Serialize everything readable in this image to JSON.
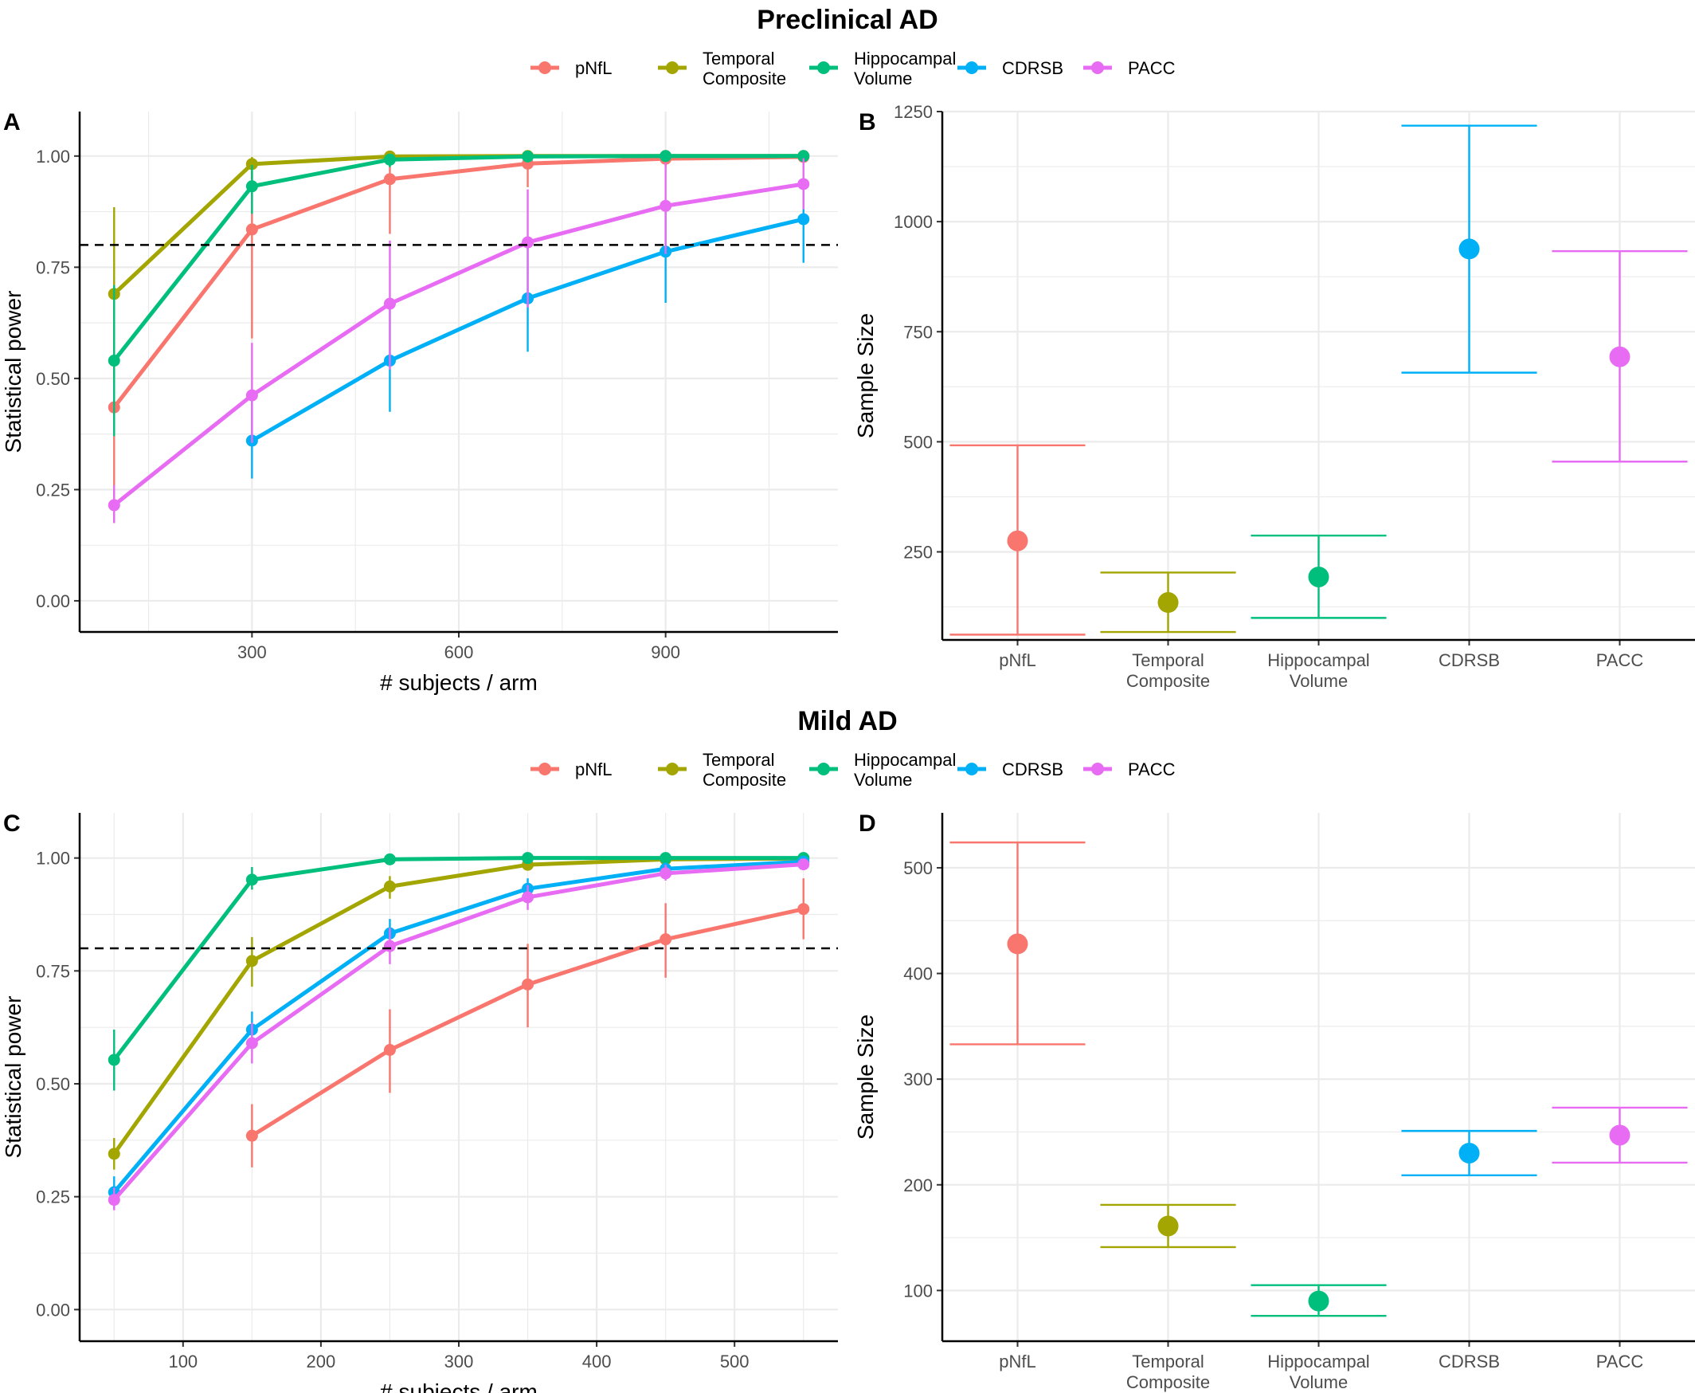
{
  "colors": {
    "pNfL": "#F8766D",
    "Temporal Composite": "#A3A500",
    "Hippocampal Volume": "#00BF7D",
    "CDRSB": "#00B0F6",
    "PACC": "#E76BF3",
    "grid": "#ebebeb",
    "threshold": "#000000"
  },
  "sections": [
    {
      "title": "Preclinical AD",
      "legend": [
        {
          "key": "pNfL",
          "lines": [
            "pNfL"
          ]
        },
        {
          "key": "Temporal Composite",
          "lines": [
            "Temporal",
            "Composite"
          ]
        },
        {
          "key": "Hippocampal Volume",
          "lines": [
            "Hippocampal",
            "Volume"
          ]
        },
        {
          "key": "CDRSB",
          "lines": [
            "CDRSB"
          ]
        },
        {
          "key": "PACC",
          "lines": [
            "PACC"
          ]
        }
      ]
    },
    {
      "title": "Mild AD",
      "legend": [
        {
          "key": "pNfL",
          "lines": [
            "pNfL"
          ]
        },
        {
          "key": "Temporal Composite",
          "lines": [
            "Temporal",
            "Composite"
          ]
        },
        {
          "key": "Hippocampal Volume",
          "lines": [
            "Hippocampal",
            "Volume"
          ]
        },
        {
          "key": "CDRSB",
          "lines": [
            "CDRSB"
          ]
        },
        {
          "key": "PACC",
          "lines": [
            "PACC"
          ]
        }
      ]
    }
  ],
  "chart_data": [
    {
      "panel": "A",
      "type": "line",
      "xlabel": "# subjects / arm",
      "ylabel": "Statistical power",
      "xlim": [
        50,
        1150
      ],
      "ylim": [
        -0.07,
        1.1
      ],
      "xticks": [
        300,
        600,
        900
      ],
      "yticks": [
        0,
        0.25,
        0.5,
        0.75,
        1.0
      ],
      "ytick_labels": [
        "0.00",
        "0.25",
        "0.50",
        "0.75",
        "1.00"
      ],
      "hline": 0.8,
      "grid": true,
      "series": [
        {
          "name": "pNfL",
          "x": [
            100,
            300,
            500,
            700,
            900,
            1100
          ],
          "y": [
            0.435,
            0.835,
            0.948,
            0.983,
            0.994,
            0.998
          ],
          "lo": [
            0.175,
            0.59,
            0.825,
            0.93,
            0.975,
            0.99
          ],
          "hi": [
            0.71,
            0.965,
            0.99,
            1.0,
            1.0,
            1.0
          ]
        },
        {
          "name": "Temporal Composite",
          "x": [
            100,
            300,
            500,
            700,
            900,
            1100
          ],
          "y": [
            0.69,
            0.982,
            0.999,
            1.0,
            1.0,
            1.0
          ],
          "lo": [
            0.49,
            0.95,
            0.99,
            1.0,
            1.0,
            1.0
          ],
          "hi": [
            0.885,
            0.998,
            1.0,
            1.0,
            1.0,
            1.0
          ]
        },
        {
          "name": "Hippocampal Volume",
          "x": [
            100,
            300,
            500,
            700,
            900,
            1100
          ],
          "y": [
            0.54,
            0.932,
            0.992,
            0.999,
            1.0,
            1.0
          ],
          "lo": [
            0.37,
            0.87,
            0.975,
            0.995,
            1.0,
            1.0
          ],
          "hi": [
            0.71,
            0.98,
            1.0,
            1.0,
            1.0,
            1.0
          ]
        },
        {
          "name": "CDRSB",
          "x": [
            300,
            500,
            700,
            900,
            1100
          ],
          "y": [
            0.36,
            0.54,
            0.68,
            0.785,
            0.858
          ],
          "lo": [
            0.275,
            0.425,
            0.56,
            0.67,
            0.76
          ],
          "hi": [
            0.45,
            0.66,
            0.8,
            0.885,
            0.93
          ]
        },
        {
          "name": "PACC",
          "x": [
            100,
            300,
            500,
            700,
            900,
            1100
          ],
          "y": [
            0.215,
            0.462,
            0.668,
            0.806,
            0.888,
            0.937
          ],
          "lo": [
            0.175,
            0.355,
            0.52,
            0.66,
            0.78,
            0.88
          ],
          "hi": [
            0.26,
            0.58,
            0.81,
            0.925,
            0.985,
            0.995
          ]
        }
      ]
    },
    {
      "panel": "B",
      "type": "scatter",
      "ylabel": "Sample Size",
      "categories": [
        [
          "pNfL"
        ],
        [
          "Temporal",
          "Composite"
        ],
        [
          "Hippocampal",
          "Volume"
        ],
        [
          "CDRSB"
        ],
        [
          "PACC"
        ]
      ],
      "ylim": [
        50,
        1250
      ],
      "yticks": [
        250,
        500,
        750,
        1000,
        1250
      ],
      "grid": true,
      "series": [
        {
          "name": "pNfL",
          "value": 275,
          "lo": 62,
          "hi": 492
        },
        {
          "name": "Temporal Composite",
          "value": 135,
          "lo": 68,
          "hi": 203
        },
        {
          "name": "Hippocampal Volume",
          "value": 193,
          "lo": 100,
          "hi": 287
        },
        {
          "name": "CDRSB",
          "value": 938,
          "lo": 657,
          "hi": 1218
        },
        {
          "name": "PACC",
          "value": 693,
          "lo": 455,
          "hi": 933
        }
      ]
    },
    {
      "panel": "C",
      "type": "line",
      "xlabel": "# subjects / arm",
      "ylabel": "Statistical power",
      "xlim": [
        25,
        575
      ],
      "ylim": [
        -0.07,
        1.1
      ],
      "xticks": [
        100,
        200,
        300,
        400,
        500
      ],
      "yticks": [
        0,
        0.25,
        0.5,
        0.75,
        1.0
      ],
      "ytick_labels": [
        "0.00",
        "0.25",
        "0.50",
        "0.75",
        "1.00"
      ],
      "hline": 0.8,
      "grid": true,
      "series": [
        {
          "name": "pNfL",
          "x": [
            150,
            250,
            350,
            450,
            550
          ],
          "y": [
            0.385,
            0.575,
            0.72,
            0.82,
            0.887
          ],
          "lo": [
            0.315,
            0.48,
            0.625,
            0.735,
            0.82
          ],
          "hi": [
            0.455,
            0.665,
            0.81,
            0.9,
            0.955
          ]
        },
        {
          "name": "Temporal Composite",
          "x": [
            50,
            150,
            250,
            350,
            450,
            550
          ],
          "y": [
            0.345,
            0.772,
            0.937,
            0.985,
            0.997,
            0.999
          ],
          "lo": [
            0.31,
            0.715,
            0.91,
            0.975,
            0.99,
            0.995
          ],
          "hi": [
            0.38,
            0.825,
            0.96,
            0.995,
            1.0,
            1.0
          ]
        },
        {
          "name": "Hippocampal Volume",
          "x": [
            50,
            150,
            250,
            350,
            450,
            550
          ],
          "y": [
            0.553,
            0.952,
            0.997,
            1.0,
            1.0,
            1.0
          ],
          "lo": [
            0.485,
            0.93,
            0.99,
            1.0,
            1.0,
            1.0
          ],
          "hi": [
            0.62,
            0.98,
            1.0,
            1.0,
            1.0,
            1.0
          ]
        },
        {
          "name": "CDRSB",
          "x": [
            50,
            150,
            250,
            350,
            450,
            550
          ],
          "y": [
            0.26,
            0.62,
            0.833,
            0.932,
            0.976,
            0.992
          ],
          "lo": [
            0.225,
            0.58,
            0.8,
            0.91,
            0.965,
            0.985
          ],
          "hi": [
            0.295,
            0.66,
            0.865,
            0.955,
            0.99,
            1.0
          ]
        },
        {
          "name": "PACC",
          "x": [
            50,
            150,
            250,
            350,
            450,
            550
          ],
          "y": [
            0.243,
            0.59,
            0.805,
            0.913,
            0.966,
            0.986
          ],
          "lo": [
            0.22,
            0.545,
            0.765,
            0.885,
            0.95,
            0.975
          ],
          "hi": [
            0.27,
            0.635,
            0.845,
            0.94,
            0.985,
            0.995
          ]
        }
      ]
    },
    {
      "panel": "D",
      "type": "scatter",
      "ylabel": "Sample Size",
      "categories": [
        [
          "pNfL"
        ],
        [
          "Temporal",
          "Composite"
        ],
        [
          "Hippocampal",
          "Volume"
        ],
        [
          "CDRSB"
        ],
        [
          "PACC"
        ]
      ],
      "ylim": [
        52,
        552
      ],
      "yticks": [
        100,
        200,
        300,
        400,
        500
      ],
      "grid": true,
      "series": [
        {
          "name": "pNfL",
          "value": 428,
          "lo": 333,
          "hi": 524
        },
        {
          "name": "Temporal Composite",
          "value": 161,
          "lo": 141,
          "hi": 181
        },
        {
          "name": "Hippocampal Volume",
          "value": 90,
          "lo": 76,
          "hi": 105
        },
        {
          "name": "CDRSB",
          "value": 230,
          "lo": 209,
          "hi": 251
        },
        {
          "name": "PACC",
          "value": 247,
          "lo": 221,
          "hi": 273
        }
      ]
    }
  ]
}
